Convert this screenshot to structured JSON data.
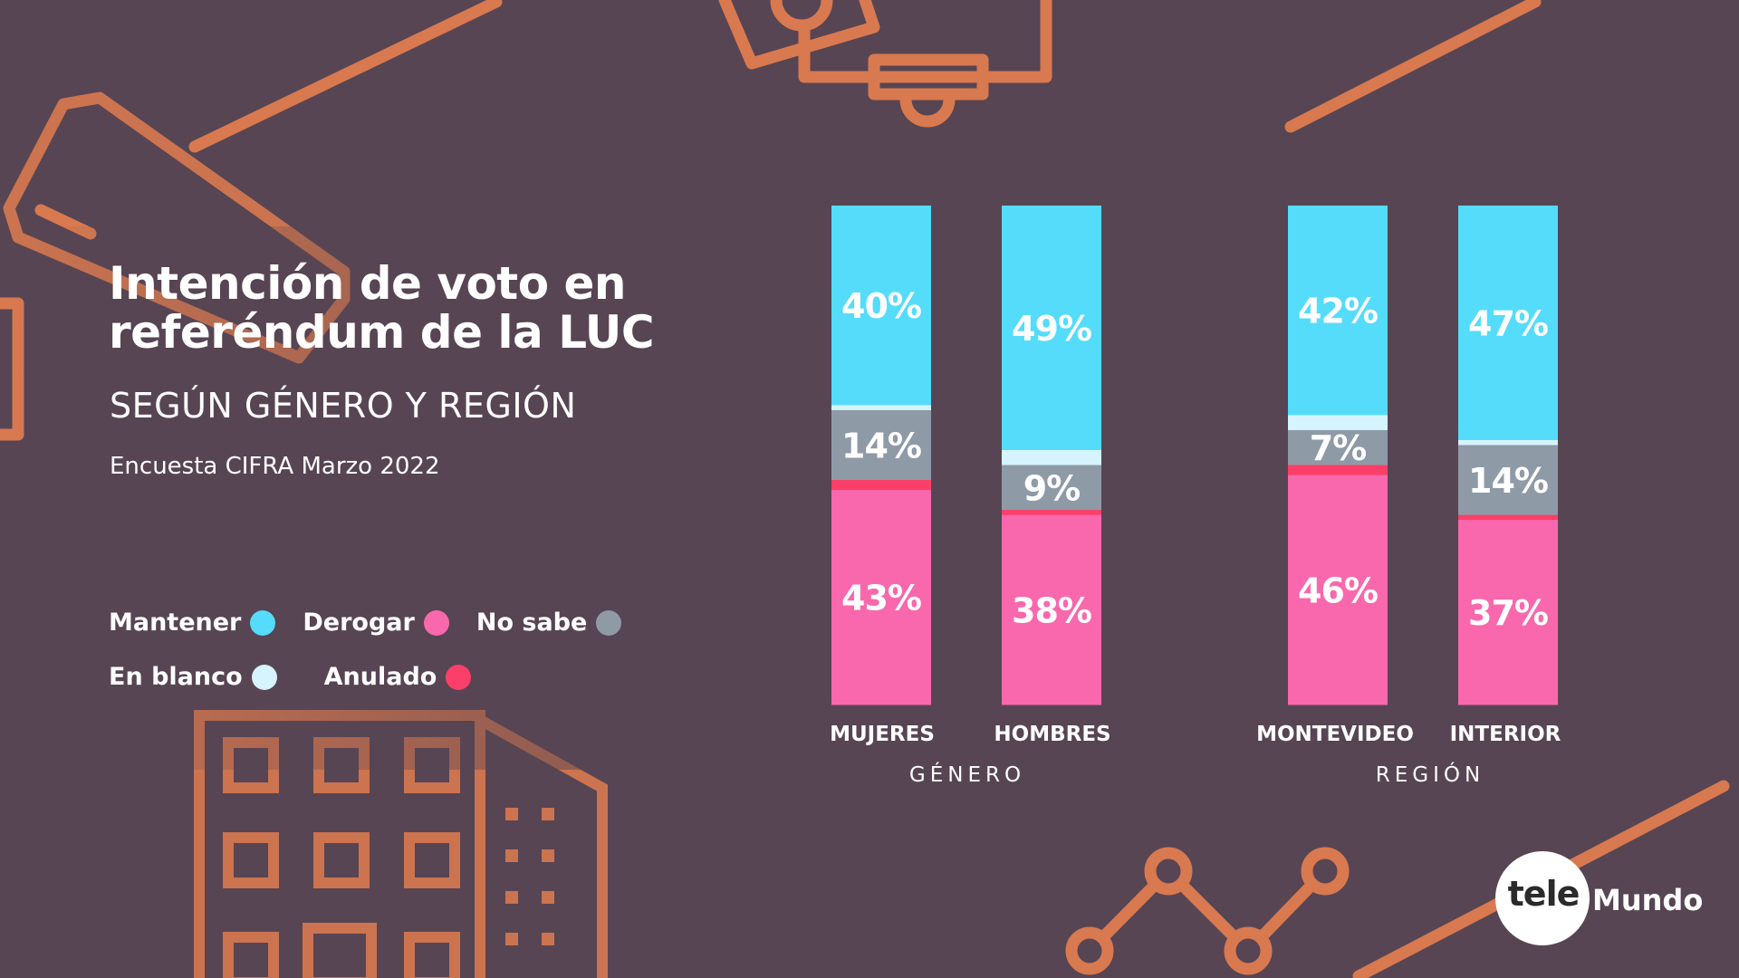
{
  "title_line1": "Intención de voto en",
  "title_line2": "referéndum de la LUC",
  "subtitle": "SEGÚN GÉNERO Y REGIÓN",
  "source": "Encuesta CIFRA Marzo 2022",
  "legend": [
    {
      "label": "Mantener",
      "color": "#55dcfb"
    },
    {
      "label": "Derogar",
      "color": "#f968ac"
    },
    {
      "label": "No sabe",
      "color": "#8f9aa7"
    },
    {
      "label": "En blanco",
      "color": "#d6f4fd"
    },
    {
      "label": "Anulado",
      "color": "#fc3f68"
    }
  ],
  "chart_data": {
    "type": "bar",
    "stacked": true,
    "title": "Intención de voto en referéndum de la LUC",
    "categories": [
      "MUJERES",
      "HOMBRES",
      "MONTEVIDEO",
      "INTERIOR"
    ],
    "groups": [
      {
        "label": "GÉNERO",
        "categories": [
          "MUJERES",
          "HOMBRES"
        ]
      },
      {
        "label": "REGIÓN",
        "categories": [
          "MONTEVIDEO",
          "INTERIOR"
        ]
      }
    ],
    "series": [
      {
        "name": "Mantener",
        "values": [
          40,
          49,
          42,
          47
        ],
        "labels": [
          "40%",
          "49%",
          "42%",
          "47%"
        ]
      },
      {
        "name": "En blanco",
        "values": [
          1,
          3,
          3,
          1
        ],
        "labels": null
      },
      {
        "name": "No sabe",
        "values": [
          14,
          9,
          7,
          14
        ],
        "labels": [
          "14%",
          "9%",
          "7%",
          "14%"
        ]
      },
      {
        "name": "Anulado",
        "values": [
          2,
          1,
          2,
          1
        ],
        "labels": null
      },
      {
        "name": "Derogar",
        "values": [
          43,
          38,
          46,
          37
        ],
        "labels": [
          "43%",
          "38%",
          "46%",
          "37%"
        ]
      }
    ],
    "ylim": [
      0,
      100
    ]
  },
  "logo": {
    "part1": "tele",
    "part2": "Mundo"
  }
}
